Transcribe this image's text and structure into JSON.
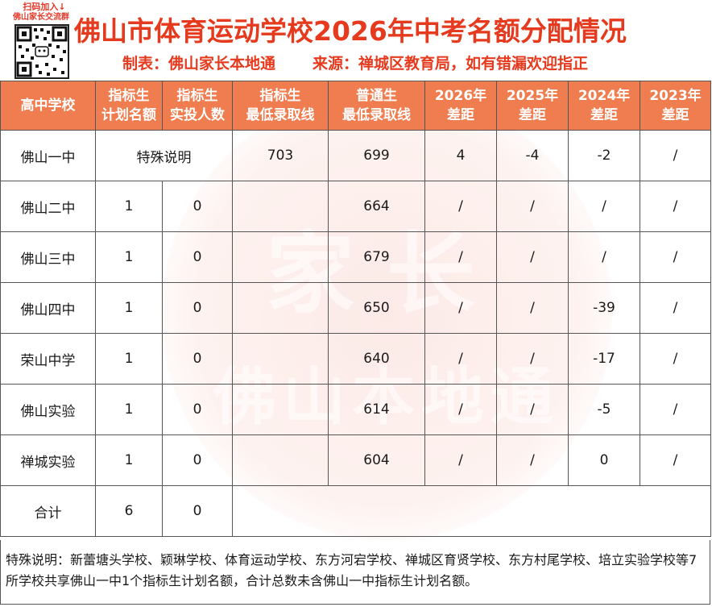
{
  "header": {
    "qr_caption_line1": "扫码加入↓",
    "qr_caption_line2": "佛山家长交流群",
    "title": "佛山市体育运动学校2026年中考名额分配情况",
    "made_by": "制表：佛山家长本地通",
    "source": "来源：禅城区教育局，如有错漏欢迎指正"
  },
  "watermark": {
    "line1": "家长",
    "line2": "佛山本地通"
  },
  "colors": {
    "header_bg": "#f07d4f",
    "title": "#e53a1e"
  },
  "table": {
    "columns": [
      {
        "line1": "高中学校",
        "line2": ""
      },
      {
        "line1": "指标生",
        "line2": "计划名额"
      },
      {
        "line1": "指标生",
        "line2": "实投人数"
      },
      {
        "line1": "指标生",
        "line2": "最低录取线"
      },
      {
        "line1": "普通生",
        "line2": "最低录取线"
      },
      {
        "line1": "2026年",
        "line2": "差距"
      },
      {
        "line1": "2025年",
        "line2": "差距"
      },
      {
        "line1": "2024年",
        "line2": "差距"
      },
      {
        "line1": "2023年",
        "line2": "差距"
      }
    ],
    "rows": [
      {
        "school": "佛山一中",
        "special": "特殊说明",
        "quota_min": "703",
        "normal_min": "699",
        "gap_2026": "4",
        "gap_2025": "-4",
        "gap_2024": "-2",
        "gap_2023": "/"
      },
      {
        "school": "佛山二中",
        "plan": "1",
        "actual": "0",
        "quota_min": "",
        "normal_min": "664",
        "gap_2026": "/",
        "gap_2025": "/",
        "gap_2024": "/",
        "gap_2023": "/"
      },
      {
        "school": "佛山三中",
        "plan": "1",
        "actual": "0",
        "quota_min": "",
        "normal_min": "679",
        "gap_2026": "/",
        "gap_2025": "/",
        "gap_2024": "/",
        "gap_2023": "/"
      },
      {
        "school": "佛山四中",
        "plan": "1",
        "actual": "0",
        "quota_min": "",
        "normal_min": "650",
        "gap_2026": "/",
        "gap_2025": "/",
        "gap_2024": "-39",
        "gap_2023": "/"
      },
      {
        "school": "荣山中学",
        "plan": "1",
        "actual": "0",
        "quota_min": "",
        "normal_min": "640",
        "gap_2026": "/",
        "gap_2025": "/",
        "gap_2024": "-17",
        "gap_2023": "/"
      },
      {
        "school": "佛山实验",
        "plan": "1",
        "actual": "0",
        "quota_min": "",
        "normal_min": "614",
        "gap_2026": "/",
        "gap_2025": "/",
        "gap_2024": "-5",
        "gap_2023": "/"
      },
      {
        "school": "禅城实验",
        "plan": "1",
        "actual": "0",
        "quota_min": "",
        "normal_min": "604",
        "gap_2026": "/",
        "gap_2025": "/",
        "gap_2024": "0",
        "gap_2023": "/"
      }
    ],
    "total": {
      "label": "合计",
      "plan": "6",
      "actual": "0"
    }
  },
  "note": "特殊说明：新蕾塘头学校、颖琳学校、体育运动学校、东方河宕学校、禅城区育贤学校、东方村尾学校、培立实验学校等7所学校共享佛山一中1个指标生计划名额，合计总数未含佛山一中指标生计划名额。"
}
